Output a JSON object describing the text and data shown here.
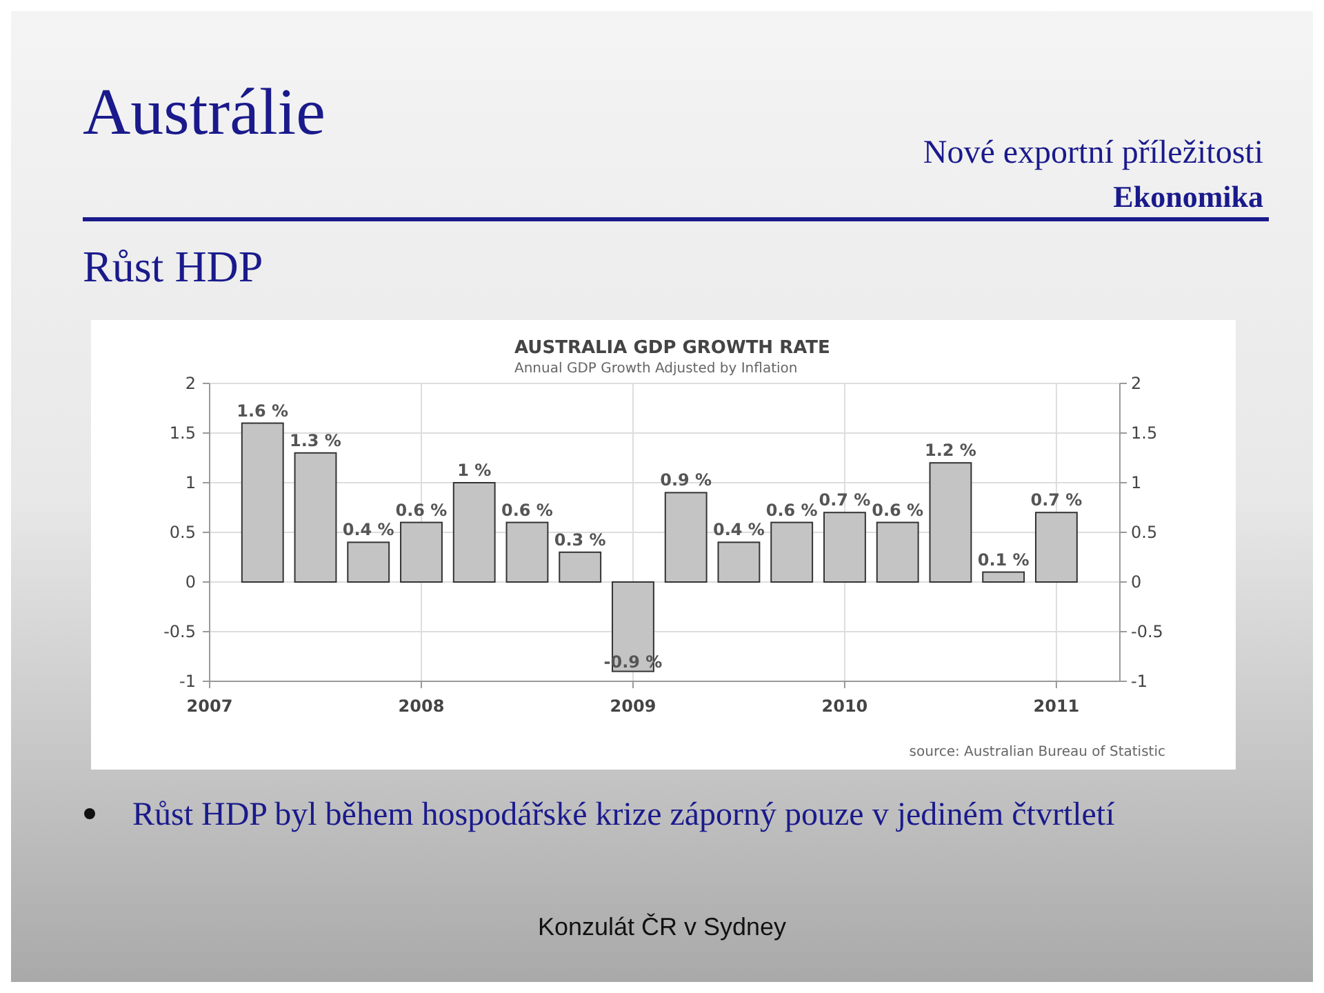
{
  "chart_data": {
    "type": "bar",
    "title": "AUSTRALIA GDP GROWTH RATE",
    "subtitle": "Annual GDP Growth Adjusted by Inflation",
    "x": [
      2007.25,
      2007.5,
      2007.75,
      2008.0,
      2008.25,
      2008.5,
      2008.75,
      2009.0,
      2009.25,
      2009.5,
      2009.75,
      2010.0,
      2010.25,
      2010.5,
      2010.75,
      2011.0
    ],
    "values": [
      1.6,
      1.3,
      0.4,
      0.6,
      1,
      0.6,
      0.3,
      -0.9,
      0.9,
      0.4,
      0.6,
      0.7,
      0.6,
      1.2,
      0.1,
      0.7
    ],
    "value_labels": [
      "1.6 %",
      "1.3 %",
      "0.4 %",
      "0.6 %",
      "1 %",
      "0.6 %",
      "0.3 %",
      "-0.9 %",
      "0.9 %",
      "0.4 %",
      "0.6 %",
      "0.7 %",
      "0.6 %",
      "1.2 %",
      "0.1 %",
      "0.7 %"
    ],
    "color": "#c4c4c4",
    "xlim": [
      2007,
      2011.3
    ],
    "xticks": [
      2007,
      2008,
      2009,
      2010,
      2011
    ],
    "ylim": [
      -1,
      2
    ],
    "yticks": [
      -1,
      -0.5,
      0,
      0.5,
      1,
      1.5,
      2
    ],
    "y2lim": [
      -1,
      2
    ],
    "y2ticks": [
      -1,
      -0.5,
      0,
      0.5,
      1,
      1.5,
      2
    ],
    "grid": true,
    "annotations": [
      "Austrálie",
      "Růst HDP",
      "Nové exportní příležitosti",
      "Ekonomika",
      "source: Australian Bureau of Statistic",
      "Růst HDP byl během hospodářské krize záporný pouze v jediném čtvrtletí",
      "Konzulát ČR v Sydney"
    ]
  }
}
